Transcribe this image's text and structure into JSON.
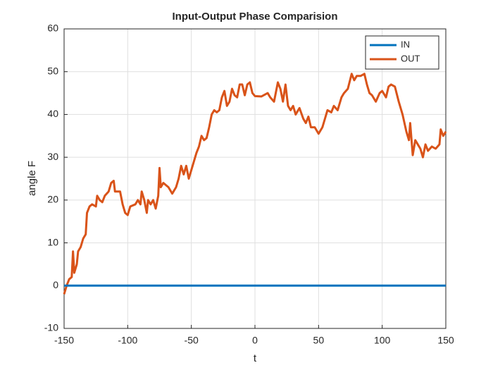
{
  "chart_data": {
    "type": "line",
    "title": "Input-Output Phase Comparision",
    "xlabel": "t",
    "ylabel": "angle F",
    "xlim": [
      -150,
      150
    ],
    "ylim": [
      -10,
      60
    ],
    "xticks": [
      -150,
      -100,
      -50,
      0,
      50,
      100,
      150
    ],
    "yticks": [
      -10,
      0,
      10,
      20,
      30,
      40,
      50,
      60
    ],
    "grid": true,
    "legend": "northeast",
    "series": [
      {
        "name": "IN",
        "color": "#0072bd",
        "x": [
          -150,
          150
        ],
        "values": [
          0,
          0
        ]
      },
      {
        "name": "OUT",
        "color": "#d95319",
        "x": [
          -150,
          -148,
          -146,
          -144,
          -143,
          -142,
          -140,
          -139,
          -137,
          -135,
          -133,
          -132,
          -130,
          -128,
          -125,
          -124,
          -122,
          -120,
          -118,
          -115,
          -113,
          -111,
          -110,
          -106,
          -104,
          -102,
          -100,
          -98,
          -94,
          -92,
          -90,
          -89,
          -87,
          -85,
          -84,
          -82,
          -80,
          -78,
          -76,
          -75,
          -74,
          -72,
          -70,
          -68,
          -65,
          -62,
          -60,
          -58,
          -56,
          -54,
          -52,
          -50,
          -48,
          -46,
          -44,
          -42,
          -40,
          -38,
          -36,
          -34,
          -32,
          -30,
          -28,
          -26,
          -24,
          -22,
          -20,
          -18,
          -16,
          -14,
          -12,
          -10,
          -8,
          -6,
          -4,
          -2,
          0,
          5,
          10,
          12,
          15,
          18,
          20,
          22,
          24,
          26,
          28,
          30,
          32,
          35,
          38,
          40,
          42,
          44,
          47,
          50,
          53,
          55,
          57,
          60,
          62,
          65,
          68,
          70,
          73,
          76,
          78,
          80,
          83,
          86,
          88,
          90,
          92,
          95,
          98,
          100,
          103,
          105,
          107,
          110,
          113,
          116,
          119,
          121,
          122,
          124,
          126,
          128,
          130,
          132,
          134,
          136,
          139,
          142,
          145,
          146,
          148,
          150
        ],
        "values": [
          -2,
          0,
          1.5,
          2,
          8,
          3,
          5,
          8,
          9,
          11,
          12,
          17,
          18.5,
          19,
          18.5,
          21,
          20,
          19.5,
          21,
          22,
          24,
          24.5,
          22,
          22,
          19,
          17,
          16.5,
          18.5,
          19,
          20,
          19,
          22,
          20,
          17,
          20,
          19,
          20,
          18,
          21,
          27.5,
          23,
          24,
          23.5,
          23,
          21.5,
          23,
          25,
          28,
          26,
          28,
          25,
          27,
          29,
          31,
          32.5,
          35,
          34,
          34.5,
          37,
          40,
          41,
          40.5,
          41,
          44,
          45.5,
          42,
          43,
          46,
          44.5,
          44,
          47,
          47,
          44.5,
          47,
          47.5,
          45,
          44.3,
          44.2,
          45,
          44,
          43,
          47.5,
          46,
          43,
          47,
          42,
          41,
          42,
          40,
          41.5,
          39,
          38,
          39.5,
          37,
          37,
          35.5,
          37,
          39,
          41,
          40.5,
          42,
          41,
          44,
          45,
          46,
          49.5,
          48,
          49,
          49,
          49.5,
          47,
          45,
          44.5,
          43,
          45,
          45.5,
          44,
          46.5,
          47,
          46.5,
          43,
          40,
          36,
          34,
          38,
          30.5,
          34,
          33,
          32,
          30,
          33,
          31.5,
          32.5,
          32,
          33,
          36.5,
          35,
          36
        ]
      }
    ]
  }
}
